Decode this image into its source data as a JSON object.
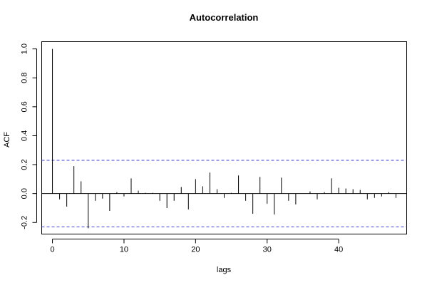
{
  "chart_data": {
    "type": "bar",
    "title": "Autocorrelation",
    "xlabel": "lags",
    "ylabel": "ACF",
    "xlim": [
      -1.5,
      49.5
    ],
    "ylim": [
      -0.28,
      1.05
    ],
    "x_ticks": [
      0,
      10,
      20,
      30,
      40
    ],
    "y_ticks": [
      -0.2,
      0.0,
      0.2,
      0.4,
      0.6,
      0.8,
      1.0
    ],
    "y_tick_labels": [
      "-0.2",
      "0.0",
      "0.2",
      "0.4",
      "0.6",
      "0.8",
      "1.0"
    ],
    "confidence_bound": 0.23,
    "bound_color": "#4040d0",
    "series": [
      {
        "lags": [
          0,
          1,
          2,
          3,
          4,
          5,
          6,
          7,
          8,
          9,
          10,
          11,
          12,
          13,
          14,
          15,
          16,
          17,
          18,
          19,
          20,
          21,
          22,
          23,
          24,
          25,
          26,
          27,
          28,
          29,
          30,
          31,
          32,
          33,
          34,
          35,
          36,
          37,
          38,
          39,
          40,
          41,
          42,
          43,
          44,
          45,
          46,
          47,
          48
        ],
        "values": [
          1.0,
          -0.04,
          -0.09,
          0.19,
          0.085,
          -0.24,
          -0.05,
          -0.035,
          -0.12,
          0.01,
          -0.02,
          0.105,
          0.02,
          0.005,
          0.005,
          -0.05,
          -0.1,
          -0.05,
          0.045,
          -0.11,
          0.1,
          0.05,
          0.145,
          0.03,
          -0.03,
          0.005,
          0.125,
          -0.05,
          -0.14,
          0.115,
          -0.07,
          -0.145,
          0.11,
          -0.05,
          -0.075,
          0.0,
          0.015,
          -0.04,
          0.01,
          0.105,
          0.04,
          0.035,
          0.03,
          0.025,
          -0.04,
          -0.03,
          -0.02,
          0.01,
          -0.03
        ]
      }
    ]
  }
}
